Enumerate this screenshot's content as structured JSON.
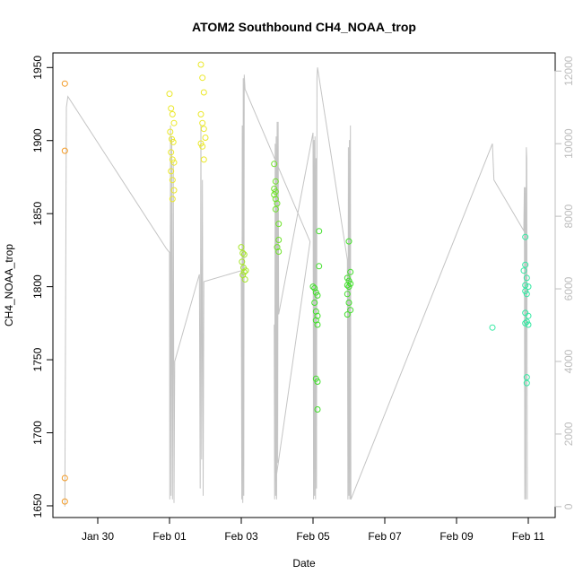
{
  "chart_data": {
    "type": "scatter",
    "title": "ATOM2 Southbound CH4_NOAA_trop",
    "xlabel": "Date",
    "ylabel": "CH4_NOAA_trop",
    "x_axis": {
      "type": "date",
      "range": [
        "2017-01-28T18:00",
        "2017-02-11T18:00"
      ],
      "tick_values": [
        "2017-01-30",
        "2017-02-01",
        "2017-02-03",
        "2017-02-05",
        "2017-02-07",
        "2017-02-09",
        "2017-02-11"
      ],
      "tick_labels": [
        "Jan 30",
        "Feb 01",
        "Feb 03",
        "Feb 05",
        "Feb 07",
        "Feb 09",
        "Feb 11"
      ]
    },
    "y_axis": {
      "range": [
        1642,
        1960
      ],
      "ticks": [
        1650,
        1700,
        1750,
        1800,
        1850,
        1900,
        1950
      ],
      "tick_labels": [
        "1650",
        "1700",
        "1750",
        "1800",
        "1850",
        "1900",
        "1950"
      ]
    },
    "y2_axis": {
      "range": [
        -300,
        12500
      ],
      "ticks": [
        0,
        2000,
        4000,
        6000,
        8000,
        10000,
        12000
      ],
      "tick_labels": [
        "0",
        "2000",
        "4000",
        "6000",
        "8000",
        "10000",
        "12000"
      ],
      "color": "#bdbdbd"
    },
    "grid": false,
    "legend": "none",
    "colors": {
      "line": "#c4c4c4",
      "axis": "#000000",
      "right_axis": "#bdbdbd"
    },
    "series": [
      {
        "kind": "points",
        "color": "#f39b26",
        "points": [
          [
            "2017-01-29T02:00",
            1939
          ],
          [
            "2017-01-29T02:00",
            1893
          ],
          [
            "2017-01-29T02:00",
            1669
          ],
          [
            "2017-01-29T02:00",
            1653
          ]
        ]
      },
      {
        "kind": "points",
        "color": "#ebe82a",
        "points": [
          [
            "2017-02-01T00:00",
            1932
          ],
          [
            "2017-02-01T01:00",
            1922
          ],
          [
            "2017-02-01T02:00",
            1918
          ],
          [
            "2017-02-01T03:00",
            1912
          ],
          [
            "2017-02-01T00:30",
            1906
          ],
          [
            "2017-02-01T01:30",
            1901
          ],
          [
            "2017-02-01T02:30",
            1899
          ],
          [
            "2017-02-01T01:00",
            1892
          ],
          [
            "2017-02-01T02:00",
            1887
          ],
          [
            "2017-02-01T03:00",
            1885
          ],
          [
            "2017-02-01T01:00",
            1879
          ],
          [
            "2017-02-01T02:00",
            1873
          ],
          [
            "2017-02-01T03:00",
            1866
          ],
          [
            "2017-02-01T02:00",
            1860
          ],
          [
            "2017-02-01T21:00",
            1952
          ],
          [
            "2017-02-01T22:00",
            1943
          ],
          [
            "2017-02-01T23:00",
            1933
          ],
          [
            "2017-02-01T21:00",
            1918
          ],
          [
            "2017-02-01T22:00",
            1912
          ],
          [
            "2017-02-01T23:00",
            1908
          ],
          [
            "2017-02-02T00:00",
            1902
          ],
          [
            "2017-02-01T21:00",
            1898
          ],
          [
            "2017-02-01T22:00",
            1896
          ],
          [
            "2017-02-01T23:00",
            1887
          ]
        ]
      },
      {
        "kind": "points",
        "color": "#a7e62b",
        "points": [
          [
            "2017-02-03T00:00",
            1827
          ],
          [
            "2017-02-03T01:00",
            1823
          ],
          [
            "2017-02-03T02:00",
            1822
          ],
          [
            "2017-02-03T00:30",
            1817
          ],
          [
            "2017-02-03T01:30",
            1813
          ],
          [
            "2017-02-03T03:00",
            1811
          ],
          [
            "2017-02-03T02:00",
            1810
          ],
          [
            "2017-02-03T01:00",
            1808
          ],
          [
            "2017-02-03T02:30",
            1805
          ]
        ]
      },
      {
        "kind": "points",
        "color": "#6fe32a",
        "points": [
          [
            "2017-02-03T22:00",
            1884
          ],
          [
            "2017-02-03T23:00",
            1872
          ],
          [
            "2017-02-03T22:00",
            1867
          ],
          [
            "2017-02-03T23:00",
            1865
          ],
          [
            "2017-02-03T22:00",
            1863
          ],
          [
            "2017-02-03T23:00",
            1860
          ],
          [
            "2017-02-04T00:00",
            1857
          ],
          [
            "2017-02-03T23:00",
            1853
          ],
          [
            "2017-02-04T01:00",
            1843
          ],
          [
            "2017-02-04T01:00",
            1832
          ],
          [
            "2017-02-04T00:00",
            1827
          ],
          [
            "2017-02-04T01:00",
            1824
          ]
        ]
      },
      {
        "kind": "points",
        "color": "#42e02b",
        "points": [
          [
            "2017-02-05T00:00",
            1800
          ],
          [
            "2017-02-05T01:00",
            1799
          ],
          [
            "2017-02-05T02:00",
            1796
          ],
          [
            "2017-02-05T03:00",
            1794
          ],
          [
            "2017-02-05T01:00",
            1789
          ],
          [
            "2017-02-05T02:00",
            1783
          ],
          [
            "2017-02-05T03:00",
            1780
          ],
          [
            "2017-02-05T02:00",
            1777
          ],
          [
            "2017-02-05T03:00",
            1774
          ],
          [
            "2017-02-05T04:00",
            1838
          ],
          [
            "2017-02-05T04:00",
            1814
          ],
          [
            "2017-02-05T02:00",
            1737
          ],
          [
            "2017-02-05T03:00",
            1735
          ],
          [
            "2017-02-05T03:00",
            1716
          ],
          [
            "2017-02-05T23:00",
            1806
          ],
          [
            "2017-02-06T00:00",
            1804
          ],
          [
            "2017-02-06T01:00",
            1802
          ],
          [
            "2017-02-05T23:00",
            1801
          ],
          [
            "2017-02-06T00:00",
            1800
          ],
          [
            "2017-02-05T23:00",
            1795
          ],
          [
            "2017-02-06T00:00",
            1789
          ],
          [
            "2017-02-06T01:00",
            1784
          ],
          [
            "2017-02-05T23:00",
            1781
          ],
          [
            "2017-02-06T00:00",
            1831
          ],
          [
            "2017-02-06T01:00",
            1810
          ]
        ]
      },
      {
        "kind": "points",
        "color": "#35e9a3",
        "points": [
          [
            "2017-02-10T00:00",
            1772
          ],
          [
            "2017-02-10T22:00",
            1834
          ],
          [
            "2017-02-10T22:00",
            1815
          ],
          [
            "2017-02-10T21:00",
            1811
          ],
          [
            "2017-02-10T23:00",
            1806
          ],
          [
            "2017-02-10T22:00",
            1801
          ],
          [
            "2017-02-11T00:00",
            1800
          ],
          [
            "2017-02-10T22:00",
            1797
          ],
          [
            "2017-02-10T23:00",
            1795
          ],
          [
            "2017-02-10T22:00",
            1782
          ],
          [
            "2017-02-11T00:00",
            1780
          ],
          [
            "2017-02-10T23:00",
            1776
          ],
          [
            "2017-02-10T22:00",
            1775
          ],
          [
            "2017-02-11T00:00",
            1774
          ],
          [
            "2017-02-10T23:00",
            1738
          ],
          [
            "2017-02-10T23:00",
            1734
          ]
        ]
      },
      {
        "kind": "line",
        "axis": "y2",
        "name": "",
        "color": "#c4c4c4",
        "points": [
          [
            "2017-01-29T02:00",
            0
          ],
          [
            "2017-01-29T03:00",
            11000
          ],
          [
            "2017-01-29T04:00",
            11300
          ],
          [
            "2017-01-31T22:00",
            7100
          ],
          [
            "2017-02-01T00:00",
            7000
          ],
          [
            "2017-02-01T00:10",
            200
          ],
          [
            "2017-02-01T00:40",
            10500
          ],
          [
            "2017-02-01T01:00",
            300
          ],
          [
            "2017-02-01T01:30",
            10200
          ],
          [
            "2017-02-01T02:00",
            200
          ],
          [
            "2017-02-01T02:30",
            9500
          ],
          [
            "2017-02-01T03:00",
            100
          ],
          [
            "2017-02-01T03:30",
            4000
          ],
          [
            "2017-02-01T20:00",
            6400
          ],
          [
            "2017-02-01T20:30",
            500
          ],
          [
            "2017-02-01T21:00",
            10500
          ],
          [
            "2017-02-01T21:30",
            1300
          ],
          [
            "2017-02-01T22:00",
            9000
          ],
          [
            "2017-02-01T22:30",
            300
          ],
          [
            "2017-02-01T23:00",
            6200
          ],
          [
            "2017-02-03T00:00",
            6500
          ],
          [
            "2017-02-03T00:20",
            200
          ],
          [
            "2017-02-03T00:40",
            10500
          ],
          [
            "2017-02-03T01:00",
            100
          ],
          [
            "2017-02-03T01:20",
            11800
          ],
          [
            "2017-02-03T01:40",
            300
          ],
          [
            "2017-02-03T02:00",
            11900
          ],
          [
            "2017-02-03T02:30",
            11500
          ],
          [
            "2017-02-04T22:00",
            7300
          ],
          [
            "2017-02-03T23:00",
            700
          ],
          [
            "2017-02-04T00:00",
            5100
          ],
          [
            "2017-02-03T22:00",
            5000
          ],
          [
            "2017-02-03T22:20",
            200
          ],
          [
            "2017-02-03T22:40",
            10000
          ],
          [
            "2017-02-03T23:00",
            300
          ],
          [
            "2017-02-03T23:20",
            10200
          ],
          [
            "2017-02-03T23:40",
            200
          ],
          [
            "2017-02-04T00:00",
            10600
          ],
          [
            "2017-02-04T00:20",
            1200
          ],
          [
            "2017-02-04T00:40",
            10600
          ],
          [
            "2017-02-04T01:00",
            5300
          ],
          [
            "2017-02-05T00:00",
            10300
          ],
          [
            "2017-02-05T00:20",
            200
          ],
          [
            "2017-02-05T00:40",
            10100
          ],
          [
            "2017-02-05T01:00",
            300
          ],
          [
            "2017-02-05T01:20",
            10200
          ],
          [
            "2017-02-05T01:40",
            200
          ],
          [
            "2017-02-05T02:00",
            9600
          ],
          [
            "2017-02-05T02:20",
            500
          ],
          [
            "2017-02-05T02:40",
            11800
          ],
          [
            "2017-02-05T03:00",
            12100
          ],
          [
            "2017-02-05T23:00",
            6800
          ],
          [
            "2017-02-05T23:20",
            200
          ],
          [
            "2017-02-05T23:40",
            9900
          ],
          [
            "2017-02-06T00:00",
            300
          ],
          [
            "2017-02-06T00:20",
            10100
          ],
          [
            "2017-02-06T00:40",
            200
          ],
          [
            "2017-02-06T01:00",
            10500
          ],
          [
            "2017-02-06T01:20",
            200
          ],
          [
            "2017-02-10T00:00",
            10000
          ],
          [
            "2017-02-10T01:00",
            9000
          ],
          [
            "2017-02-10T21:00",
            7600
          ],
          [
            "2017-02-10T21:20",
            8800
          ],
          [
            "2017-02-10T21:40",
            200
          ],
          [
            "2017-02-10T22:00",
            8800
          ],
          [
            "2017-02-10T22:20",
            200
          ],
          [
            "2017-02-10T22:40",
            9900
          ],
          [
            "2017-02-10T23:00",
            9600
          ],
          [
            "2017-02-10T23:20",
            200
          ]
        ]
      }
    ]
  }
}
